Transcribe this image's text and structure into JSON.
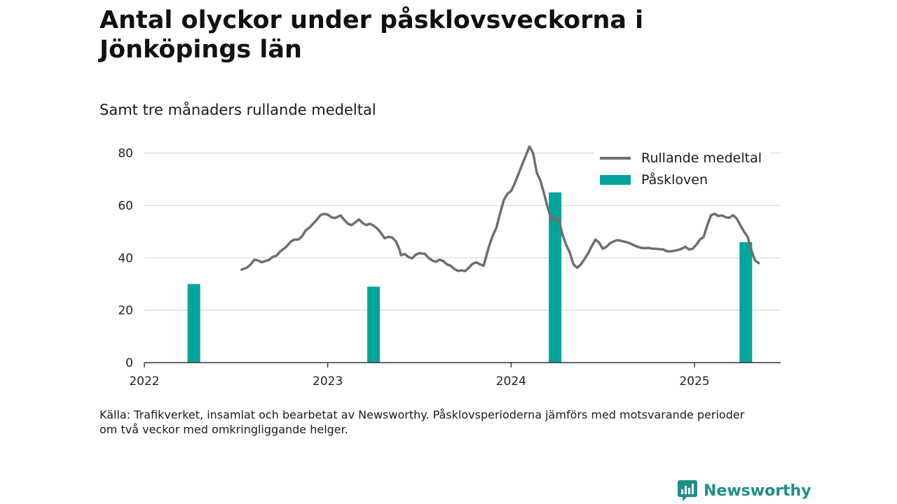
{
  "title": "Antal olyckor under påsklovsveckorna i Jönköpings län",
  "subtitle": "Samt tre månaders rullande medeltal",
  "source_line1": "Källa: Trafikverket, insamlat och bearbetat av Newsworthy. Påsklovsperioderna jämförs med motsvarande perioder",
  "source_line2": "om två veckor med omkringliggande helger.",
  "brand": "Newsworthy",
  "colors": {
    "line": "#6e6e73",
    "bars": "#00a59b",
    "grid": "#dddddd",
    "axis": "#333333",
    "brand": "#1f8f88"
  },
  "chart_data": {
    "type": "bar+line",
    "x_axis": {
      "min": 2022.0,
      "max": 2025.47,
      "ticks": [
        2022,
        2023,
        2024,
        2025
      ],
      "tick_labels": [
        "2022",
        "2023",
        "2024",
        "2025"
      ]
    },
    "y_axis": {
      "min": 0,
      "max": 85,
      "ticks": [
        0,
        20,
        40,
        60,
        80
      ],
      "tick_labels": [
        "0",
        "20",
        "40",
        "60",
        "80"
      ]
    },
    "grid": true,
    "legend_position": "top-right",
    "series": [
      {
        "name": "Rullande medeltal",
        "type": "line",
        "points": [
          [
            2022.53,
            35.5
          ],
          [
            2022.56,
            36.3
          ],
          [
            2022.58,
            37.5
          ],
          [
            2022.6,
            39.3
          ],
          [
            2022.62,
            39.0
          ],
          [
            2022.64,
            38.3
          ],
          [
            2022.66,
            38.8
          ],
          [
            2022.68,
            39.2
          ],
          [
            2022.7,
            40.4
          ],
          [
            2022.72,
            40.8
          ],
          [
            2022.74,
            42.4
          ],
          [
            2022.77,
            44.0
          ],
          [
            2022.8,
            46.3
          ],
          [
            2022.82,
            47.0
          ],
          [
            2022.84,
            47.0
          ],
          [
            2022.86,
            48.2
          ],
          [
            2022.88,
            50.5
          ],
          [
            2022.9,
            51.5
          ],
          [
            2022.92,
            53.0
          ],
          [
            2022.94,
            54.5
          ],
          [
            2022.96,
            56.3
          ],
          [
            2022.98,
            56.8
          ],
          [
            2023.0,
            56.5
          ],
          [
            2023.02,
            55.5
          ],
          [
            2023.04,
            55.2
          ],
          [
            2023.07,
            56.2
          ],
          [
            2023.09,
            54.5
          ],
          [
            2023.11,
            53.0
          ],
          [
            2023.13,
            52.5
          ],
          [
            2023.15,
            53.5
          ],
          [
            2023.17,
            54.7
          ],
          [
            2023.19,
            53.3
          ],
          [
            2023.21,
            52.5
          ],
          [
            2023.23,
            53.0
          ],
          [
            2023.25,
            52.3
          ],
          [
            2023.27,
            51.2
          ],
          [
            2023.29,
            49.5
          ],
          [
            2023.31,
            47.5
          ],
          [
            2023.33,
            48.0
          ],
          [
            2023.35,
            47.8
          ],
          [
            2023.37,
            46.5
          ],
          [
            2023.39,
            43.5
          ],
          [
            2023.4,
            41.0
          ],
          [
            2023.42,
            41.5
          ],
          [
            2023.44,
            40.3
          ],
          [
            2023.46,
            39.8
          ],
          [
            2023.48,
            41.2
          ],
          [
            2023.5,
            41.8
          ],
          [
            2023.53,
            41.5
          ],
          [
            2023.55,
            40.0
          ],
          [
            2023.57,
            39.0
          ],
          [
            2023.59,
            38.5
          ],
          [
            2023.61,
            39.3
          ],
          [
            2023.63,
            38.8
          ],
          [
            2023.65,
            37.5
          ],
          [
            2023.67,
            37.0
          ],
          [
            2023.69,
            35.8
          ],
          [
            2023.71,
            35.0
          ],
          [
            2023.73,
            35.2
          ],
          [
            2023.75,
            35.0
          ],
          [
            2023.77,
            36.3
          ],
          [
            2023.79,
            37.7
          ],
          [
            2023.81,
            38.3
          ],
          [
            2023.83,
            37.5
          ],
          [
            2023.85,
            37.0
          ],
          [
            2023.88,
            44.5
          ],
          [
            2023.9,
            48.5
          ],
          [
            2023.92,
            51.5
          ],
          [
            2023.94,
            57.0
          ],
          [
            2023.96,
            62.0
          ],
          [
            2023.98,
            64.5
          ],
          [
            2024.0,
            65.5
          ],
          [
            2024.02,
            68.5
          ],
          [
            2024.04,
            72.0
          ],
          [
            2024.06,
            75.5
          ],
          [
            2024.08,
            79.0
          ],
          [
            2024.1,
            82.5
          ],
          [
            2024.12,
            80.0
          ],
          [
            2024.14,
            72.5
          ],
          [
            2024.16,
            69.5
          ],
          [
            2024.18,
            64.5
          ],
          [
            2024.2,
            59.0
          ],
          [
            2024.22,
            54.5
          ],
          [
            2024.24,
            55.2
          ],
          [
            2024.26,
            54.5
          ],
          [
            2024.28,
            49.0
          ],
          [
            2024.3,
            45.0
          ],
          [
            2024.32,
            42.0
          ],
          [
            2024.34,
            37.5
          ],
          [
            2024.36,
            36.2
          ],
          [
            2024.38,
            37.5
          ],
          [
            2024.4,
            39.5
          ],
          [
            2024.42,
            41.7
          ],
          [
            2024.44,
            44.5
          ],
          [
            2024.46,
            47.0
          ],
          [
            2024.48,
            45.8
          ],
          [
            2024.5,
            43.5
          ],
          [
            2024.52,
            44.2
          ],
          [
            2024.54,
            45.6
          ],
          [
            2024.56,
            46.3
          ],
          [
            2024.58,
            46.8
          ],
          [
            2024.61,
            46.3
          ],
          [
            2024.63,
            46.0
          ],
          [
            2024.65,
            45.5
          ],
          [
            2024.67,
            44.8
          ],
          [
            2024.69,
            44.2
          ],
          [
            2024.71,
            43.8
          ],
          [
            2024.73,
            43.7
          ],
          [
            2024.75,
            43.8
          ],
          [
            2024.77,
            43.5
          ],
          [
            2024.79,
            43.5
          ],
          [
            2024.81,
            43.3
          ],
          [
            2024.83,
            43.2
          ],
          [
            2024.85,
            42.5
          ],
          [
            2024.87,
            42.5
          ],
          [
            2024.89,
            42.7
          ],
          [
            2024.91,
            43.0
          ],
          [
            2024.93,
            43.5
          ],
          [
            2024.95,
            44.2
          ],
          [
            2024.97,
            43.2
          ],
          [
            2024.99,
            43.5
          ],
          [
            2025.01,
            45.0
          ],
          [
            2025.03,
            47.0
          ],
          [
            2025.05,
            48.0
          ],
          [
            2025.07,
            52.5
          ],
          [
            2025.09,
            56.3
          ],
          [
            2025.11,
            56.8
          ],
          [
            2025.13,
            56.0
          ],
          [
            2025.15,
            56.2
          ],
          [
            2025.17,
            55.5
          ],
          [
            2025.19,
            55.3
          ],
          [
            2025.21,
            56.3
          ],
          [
            2025.23,
            55.0
          ],
          [
            2025.25,
            52.5
          ],
          [
            2025.27,
            50.0
          ],
          [
            2025.29,
            48.0
          ],
          [
            2025.31,
            43.0
          ],
          [
            2025.33,
            39.0
          ],
          [
            2025.35,
            38.0
          ]
        ]
      },
      {
        "name": "Påskloven",
        "type": "bar",
        "points": [
          [
            2022.27,
            30
          ],
          [
            2023.25,
            29
          ],
          [
            2024.24,
            65
          ],
          [
            2025.28,
            46
          ]
        ]
      }
    ]
  }
}
